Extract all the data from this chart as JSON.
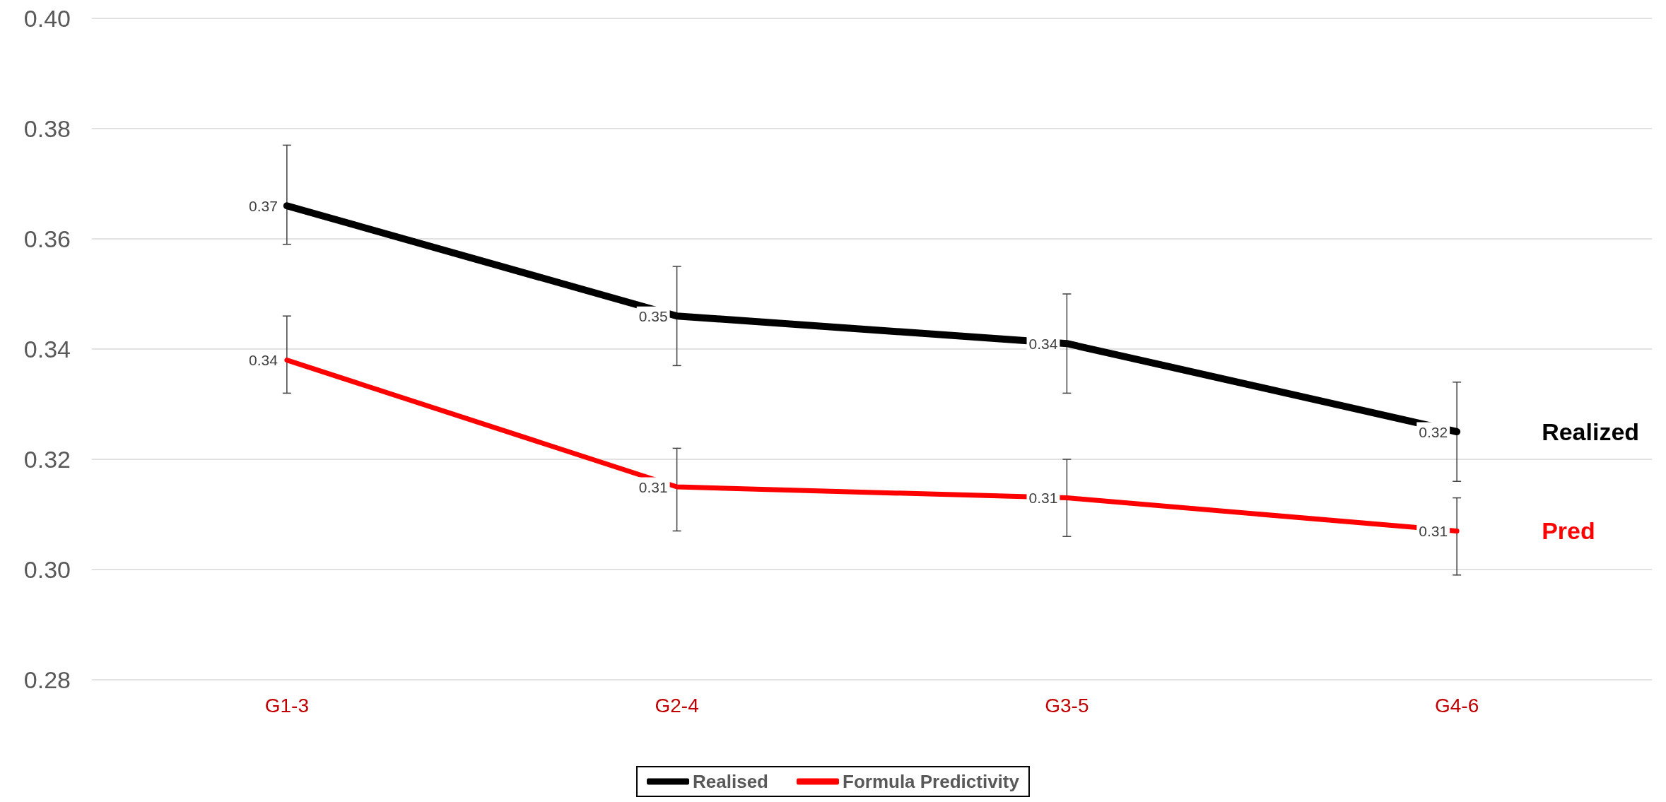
{
  "chart_data": {
    "type": "line",
    "categories": [
      "G1-3",
      "G2-4",
      "G3-5",
      "G4-6"
    ],
    "series": [
      {
        "name": "Realised",
        "color": "#000000",
        "values": [
          0.366,
          0.346,
          0.341,
          0.325
        ],
        "value_labels": [
          "0.37",
          "0.35",
          "0.34",
          "0.32"
        ],
        "errors": [
          [
            0.359,
            0.377
          ],
          [
            0.337,
            0.355
          ],
          [
            0.332,
            0.35
          ],
          [
            0.316,
            0.334
          ]
        ]
      },
      {
        "name": "Formula Predictivity",
        "color": "#ff0000",
        "values": [
          0.338,
          0.315,
          0.313,
          0.307
        ],
        "value_labels": [
          "0.34",
          "0.31",
          "0.31",
          "0.31"
        ],
        "errors": [
          [
            0.332,
            0.346
          ],
          [
            0.307,
            0.322
          ],
          [
            0.306,
            0.32
          ],
          [
            0.299,
            0.313
          ]
        ]
      }
    ],
    "annotations": [
      "Realized",
      "Pred"
    ],
    "ylim": [
      0.28,
      0.4
    ],
    "yticks": [
      0.28,
      {
        "value": 0.3,
        "label": "0.30"
      },
      0.32,
      0.34,
      0.36,
      0.38,
      {
        "value": 0.4,
        "label": "0.40"
      }
    ],
    "grid": "y",
    "legend": "bottom",
    "marker": "none",
    "line_style": "solid"
  }
}
